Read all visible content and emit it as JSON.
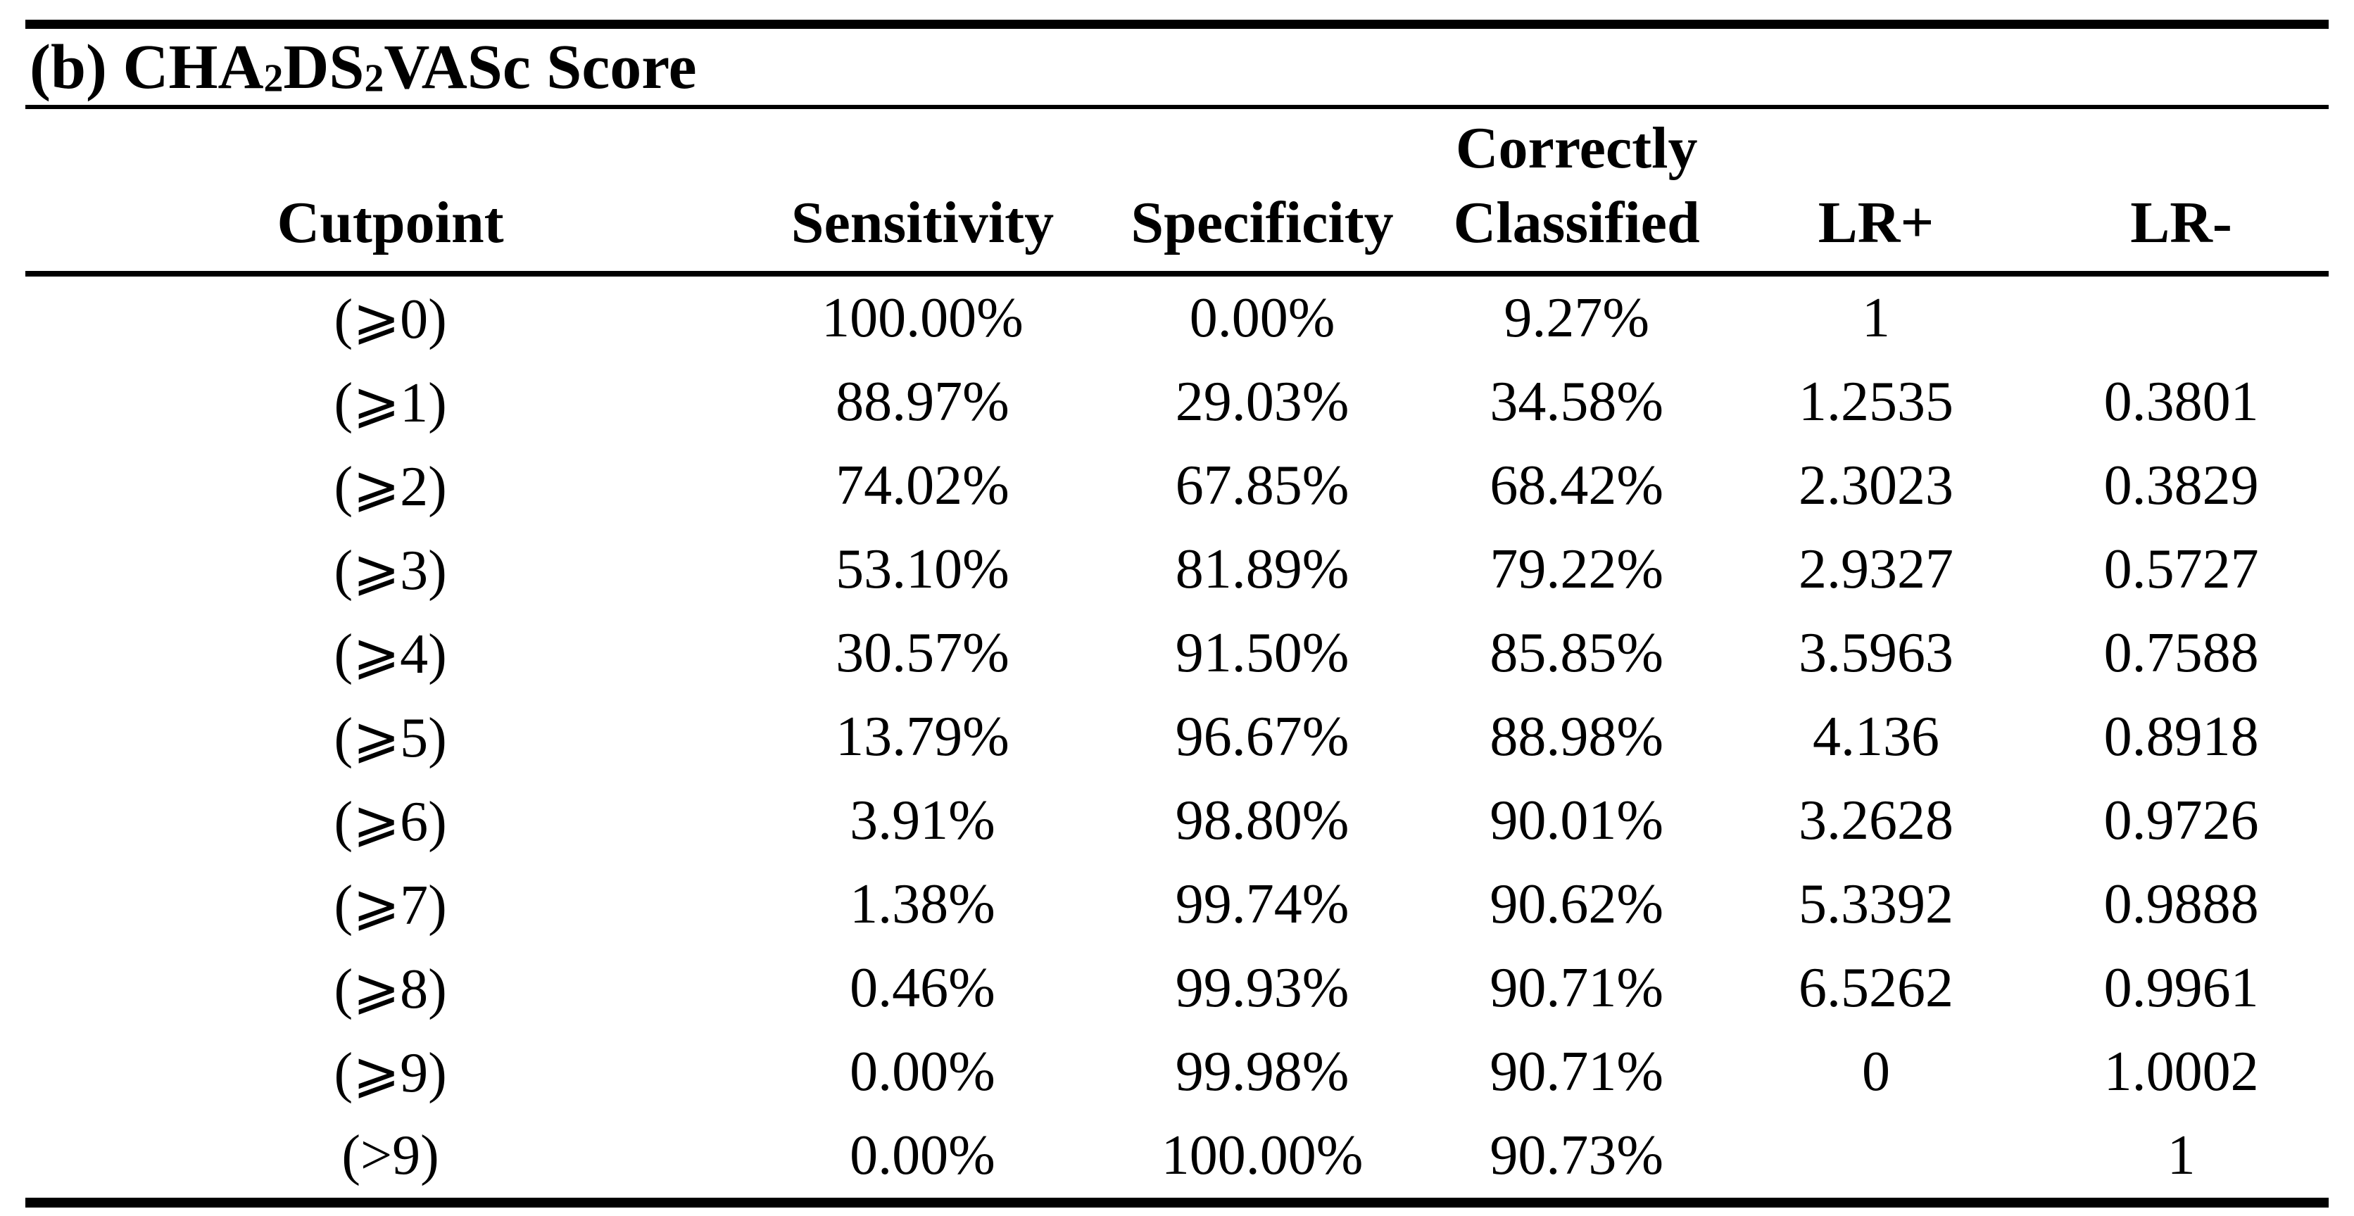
{
  "colors": {
    "background": "#ffffff",
    "text": "#000000",
    "rule": "#000000"
  },
  "panel": {
    "title": {
      "prefix": "(b) CHA",
      "sub1": "2",
      "mid": "DS",
      "sub2": "2",
      "suffix": "VASc Score"
    }
  },
  "table": {
    "headers": [
      {
        "line1": "",
        "line2": "Cutpoint"
      },
      {
        "line1": "",
        "line2": "Sensitivity"
      },
      {
        "line1": "",
        "line2": "Specificity"
      },
      {
        "line1": "Correctly",
        "line2": "Classified"
      },
      {
        "line1": "",
        "line2": "LR+"
      },
      {
        "line1": "",
        "line2": "LR-"
      }
    ],
    "column_keys": [
      "cutpoint",
      "sensitivity",
      "specificity",
      "correctly-classified",
      "lr-plus",
      "lr-minus"
    ],
    "rows": [
      {
        "cells": [
          "(⩾0)",
          "100.00%",
          "0.00%",
          "9.27%",
          "1",
          ""
        ]
      },
      {
        "cells": [
          "(⩾1)",
          "88.97%",
          "29.03%",
          "34.58%",
          "1.2535",
          "0.3801"
        ]
      },
      {
        "cells": [
          "(⩾2)",
          "74.02%",
          "67.85%",
          "68.42%",
          "2.3023",
          "0.3829"
        ]
      },
      {
        "cells": [
          "(⩾3)",
          "53.10%",
          "81.89%",
          "79.22%",
          "2.9327",
          "0.5727"
        ]
      },
      {
        "cells": [
          "(⩾4)",
          "30.57%",
          "91.50%",
          "85.85%",
          "3.5963",
          "0.7588"
        ]
      },
      {
        "cells": [
          "(⩾5)",
          "13.79%",
          "96.67%",
          "88.98%",
          "4.136",
          "0.8918"
        ]
      },
      {
        "cells": [
          "(⩾6)",
          "3.91%",
          "98.80%",
          "90.01%",
          "3.2628",
          "0.9726"
        ]
      },
      {
        "cells": [
          "(⩾7)",
          "1.38%",
          "99.74%",
          "90.62%",
          "5.3392",
          "0.9888"
        ]
      },
      {
        "cells": [
          "(⩾8)",
          "0.46%",
          "99.93%",
          "90.71%",
          "6.5262",
          "0.9961"
        ]
      },
      {
        "cells": [
          "(⩾9)",
          "0.00%",
          "99.98%",
          "90.71%",
          "0",
          "1.0002"
        ]
      },
      {
        "cells": [
          "(>9)",
          "0.00%",
          "100.00%",
          "90.73%",
          "",
          "1"
        ]
      }
    ]
  }
}
